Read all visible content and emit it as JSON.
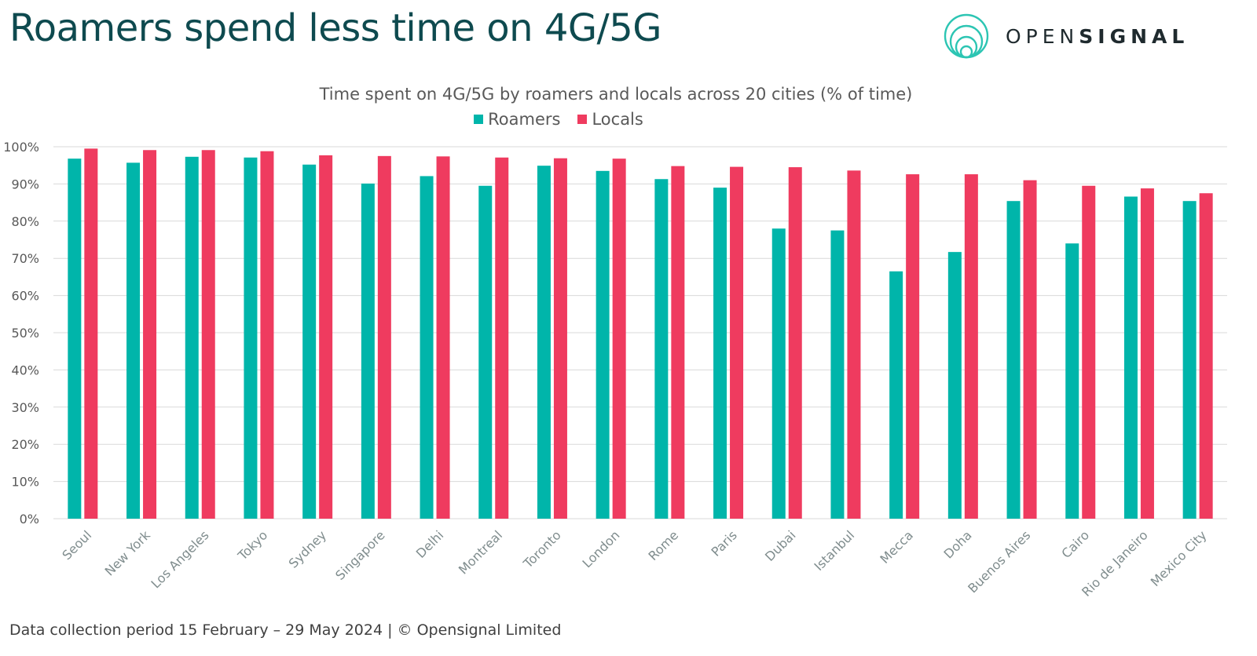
{
  "headline": "Roamers spend less time on 4G/5G",
  "logo": {
    "word_light": "OPEN",
    "word_bold": "SIGNAL"
  },
  "footer": "Data collection period 15 February – 29 May 2024  |  © Opensignal Limited",
  "colors": {
    "roamers": "#00b5aa",
    "locals": "#ef3b5f",
    "headline": "#0e4a4f",
    "grid": "#d9d9d9",
    "text": "#595959"
  },
  "chart_data": {
    "type": "bar",
    "title": "Time spent on 4G/5G by roamers and locals across 20 cities (% of time)",
    "xlabel": "",
    "ylabel": "",
    "ylim": [
      0,
      100
    ],
    "y_ticks": [
      0,
      10,
      20,
      30,
      40,
      50,
      60,
      70,
      80,
      90,
      100
    ],
    "y_tick_suffix": "%",
    "grid": true,
    "legend_position": "top-center",
    "categories": [
      "Seoul",
      "New York",
      "Los Angeles",
      "Tokyo",
      "Sydney",
      "Singapore",
      "Delhi",
      "Montreal",
      "Toronto",
      "London",
      "Rome",
      "Paris",
      "Dubai",
      "Istanbul",
      "Mecca",
      "Doha",
      "Buenos Aires",
      "Cairo",
      "Rio de Janeiro",
      "Mexico City"
    ],
    "series": [
      {
        "name": "Roamers",
        "values": [
          96.8,
          95.7,
          97.3,
          97.1,
          95.2,
          90.1,
          92.1,
          89.5,
          94.9,
          93.5,
          91.3,
          89.0,
          78.0,
          77.5,
          66.5,
          71.7,
          85.4,
          74.0,
          86.6,
          85.4
        ]
      },
      {
        "name": "Locals",
        "values": [
          99.5,
          99.1,
          99.1,
          98.8,
          97.7,
          97.5,
          97.4,
          97.1,
          96.9,
          96.8,
          94.8,
          94.6,
          94.5,
          93.6,
          92.6,
          92.6,
          91.0,
          89.5,
          88.8,
          87.5
        ]
      }
    ]
  }
}
